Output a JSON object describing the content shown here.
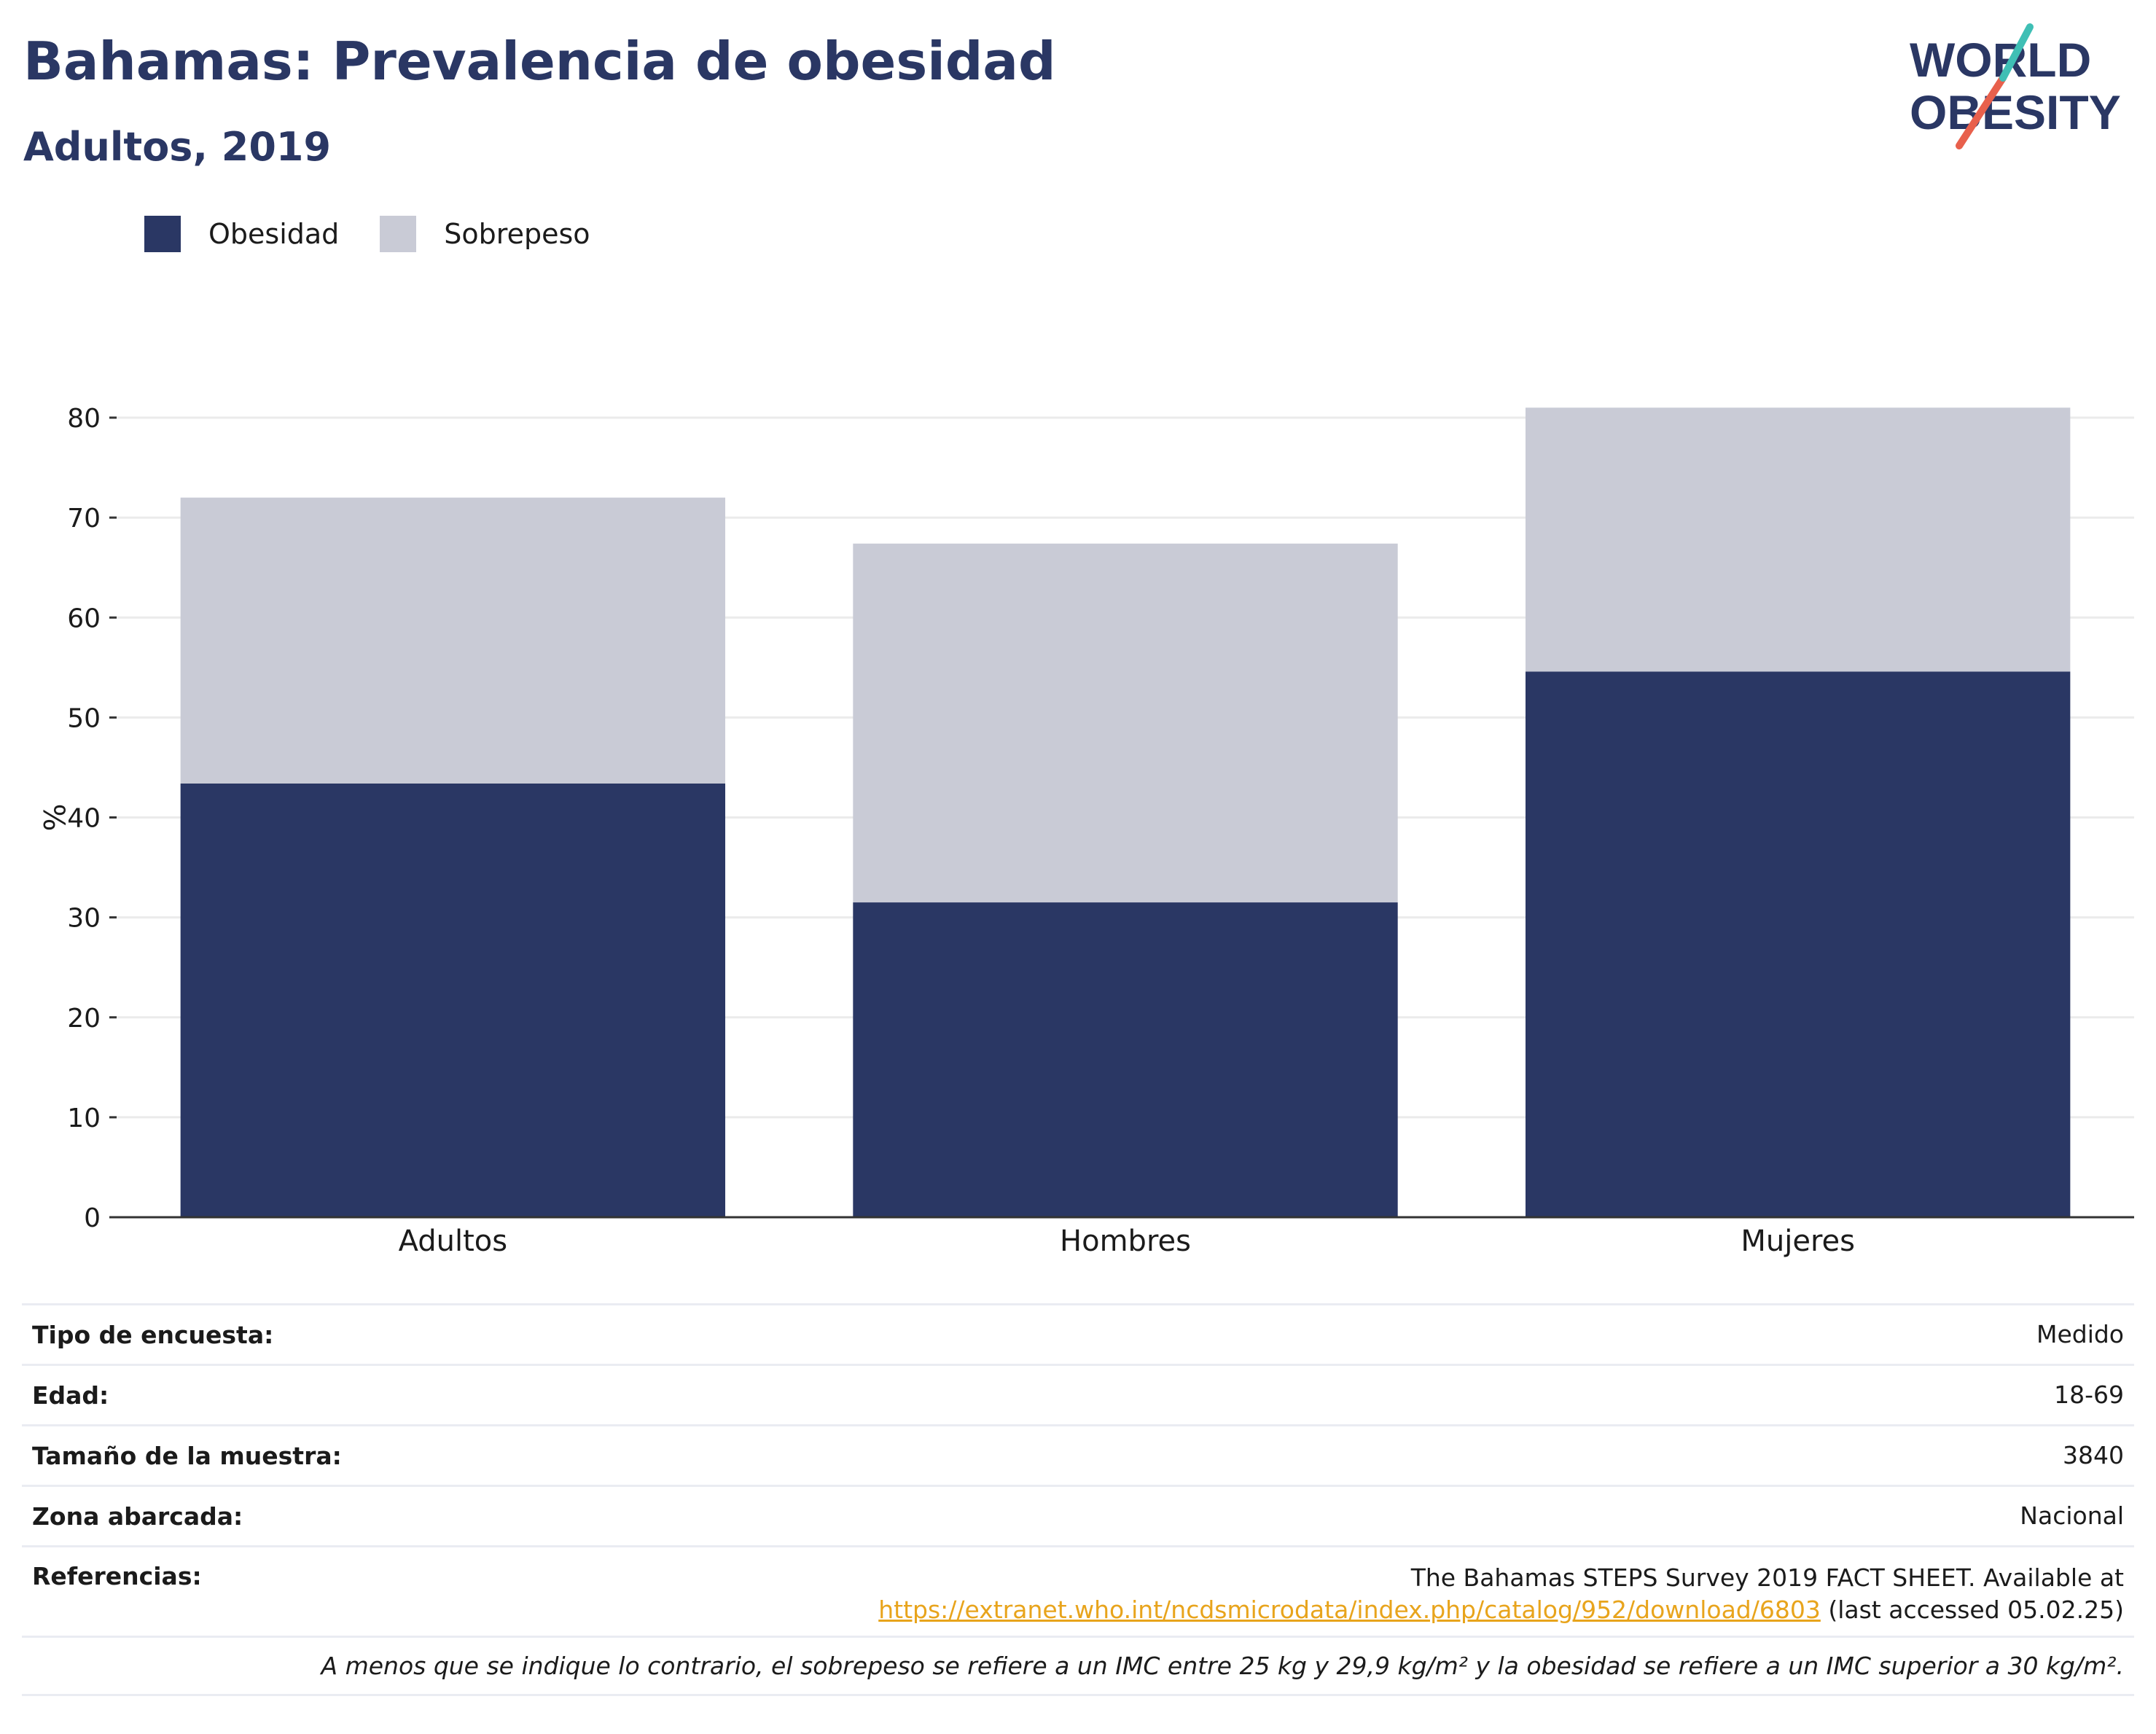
{
  "header": {
    "title": "Bahamas: Prevalencia de obesidad",
    "subtitle": "Adultos, 2019"
  },
  "logo": {
    "line1": "WORLD",
    "line2": "OBESITY"
  },
  "legend": [
    {
      "label": "Obesidad",
      "color": "#2a3764"
    },
    {
      "label": "Sobrepeso",
      "color": "#c9cbd6"
    }
  ],
  "chart_data": {
    "type": "bar",
    "stacked": true,
    "categories": [
      "Adultos",
      "Hombres",
      "Mujeres"
    ],
    "series": [
      {
        "name": "Obesidad",
        "color": "#2a3764",
        "values": [
          43.4,
          31.5,
          54.6
        ]
      },
      {
        "name": "Sobrepeso",
        "color": "#c9cbd6",
        "values": [
          28.6,
          35.9,
          26.4
        ]
      }
    ],
    "totals": [
      72.0,
      67.4,
      81.0
    ],
    "ylabel": "%",
    "ylim": [
      0,
      80
    ],
    "yticks": [
      0,
      10,
      20,
      30,
      40,
      50,
      60,
      70,
      80
    ],
    "grid": true,
    "legend_position": "top-left"
  },
  "info": {
    "survey_type": {
      "label": "Tipo de encuesta:",
      "value": "Medido"
    },
    "age": {
      "label": "Edad:",
      "value": "18-69"
    },
    "sample_size": {
      "label": "Tamaño de la muestra:",
      "value": "3840"
    },
    "area": {
      "label": "Zona abarcada:",
      "value": "Nacional"
    },
    "references": {
      "label": "Referencias:",
      "line1": "The Bahamas STEPS Survey 2019 FACT SHEET. Available at",
      "link": "https://extranet.who.int/ncdsmicrodata/index.php/catalog/952/download/6803",
      "suffix": " (last accessed 05.02.25)"
    },
    "note": "A menos que se indique lo contrario, el sobrepeso se refiere a un IMC entre 25 kg y 29,9 kg/m² y la obesidad se refiere a un IMC superior a 30 kg/m²."
  }
}
